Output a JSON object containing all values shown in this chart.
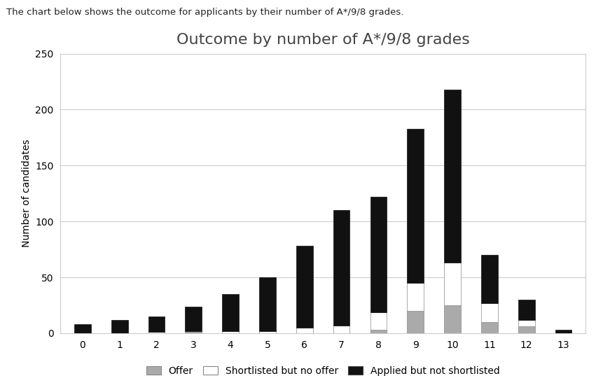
{
  "title": "Outcome by number of A*/9/8 grades",
  "xlabel": "",
  "ylabel": "Number of candidates",
  "categories": [
    0,
    1,
    2,
    3,
    4,
    5,
    6,
    7,
    8,
    9,
    10,
    11,
    12,
    13
  ],
  "offer": [
    0,
    0,
    0,
    1,
    0,
    0,
    0,
    0,
    3,
    20,
    25,
    10,
    6,
    0
  ],
  "shortlisted_no_offer": [
    0,
    0,
    1,
    1,
    2,
    2,
    5,
    7,
    16,
    25,
    38,
    17,
    6,
    0
  ],
  "applied_not_shortlisted": [
    8,
    12,
    14,
    22,
    33,
    48,
    73,
    103,
    103,
    138,
    155,
    43,
    18,
    3
  ],
  "color_offer": "#aaaaaa",
  "color_shortlisted": "#ffffff",
  "color_applied": "#111111",
  "ylim": [
    0,
    250
  ],
  "yticks": [
    0,
    50,
    100,
    150,
    200,
    250
  ],
  "background_color": "#ffffff",
  "chart_background": "#ffffff",
  "chart_border_color": "#cccccc",
  "top_text": "The chart below shows the outcome for applicants by their number of A*/9/8 grades.",
  "legend_labels": [
    "Offer",
    "Shortlisted but no offer",
    "Applied but not shortlisted"
  ],
  "title_fontsize": 16,
  "label_fontsize": 10,
  "tick_fontsize": 10,
  "bar_width": 0.45
}
